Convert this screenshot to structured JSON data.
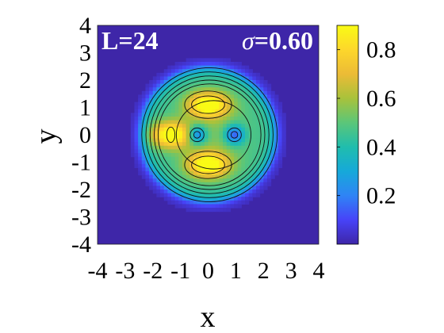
{
  "chart_data": {
    "type": "heatmap",
    "xlabel": "x",
    "ylabel": "y",
    "xlim": [
      -4,
      4
    ],
    "ylim": [
      -4,
      4
    ],
    "xticks": [
      "-4",
      "-3",
      "-2",
      "-1",
      "0",
      "1",
      "2",
      "3",
      "4"
    ],
    "yticks": [
      "4",
      "3",
      "2",
      "1",
      "0",
      "-1",
      "-2",
      "-3",
      "-4"
    ],
    "annotation_left": "L=24",
    "annotation_sigma": "σ",
    "annotation_right_value": "=0.60",
    "colorbar": {
      "min": 0.0,
      "max": 0.9,
      "ticks": [
        "0.8",
        "0.6",
        "0.4",
        "0.2"
      ],
      "tick_values": [
        0.8,
        0.6,
        0.4,
        0.2
      ]
    },
    "colormap": [
      "#3e26a8",
      "#4743f8",
      "#2f84f5",
      "#16a9d9",
      "#20bdad",
      "#5bc679",
      "#a8c23b",
      "#ecbb36",
      "#fdd72b",
      "#f9fb15"
    ],
    "background_value": 0.02,
    "features": {
      "disk_radius": 2.45,
      "lobes": [
        {
          "x": 0.0,
          "y": 1.1,
          "value": 0.9
        },
        {
          "x": 0.0,
          "y": -1.1,
          "value": 0.9
        },
        {
          "x": -1.35,
          "y": 0.0,
          "value": 0.85
        }
      ],
      "holes": [
        {
          "x": -0.4,
          "y": 0.0,
          "value": 0.3
        },
        {
          "x": 0.95,
          "y": 0.0,
          "value": 0.3
        }
      ]
    }
  }
}
